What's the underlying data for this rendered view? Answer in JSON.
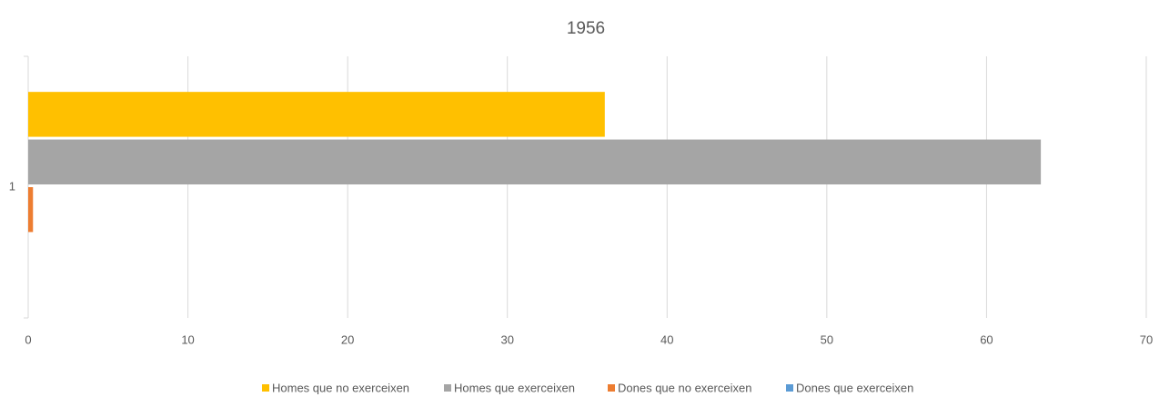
{
  "chart_data": {
    "type": "bar",
    "orientation": "horizontal",
    "title": "1956",
    "categories": [
      "1"
    ],
    "series": [
      {
        "name": "Homes que no exerceixen",
        "color": "#ffc000",
        "values": [
          36.1
        ]
      },
      {
        "name": "Homes que exerceixen",
        "color": "#a5a5a5",
        "values": [
          63.4
        ]
      },
      {
        "name": "Dones que no exerceixen",
        "color": "#ed7d31",
        "values": [
          0.3
        ]
      },
      {
        "name": "Dones que exerceixen",
        "color": "#5b9bd5",
        "values": [
          0
        ]
      }
    ],
    "xlim": [
      0,
      70
    ],
    "xticks": [
      0,
      10,
      20,
      30,
      40,
      50,
      60,
      70
    ],
    "grid": true,
    "legend": "bottom"
  }
}
